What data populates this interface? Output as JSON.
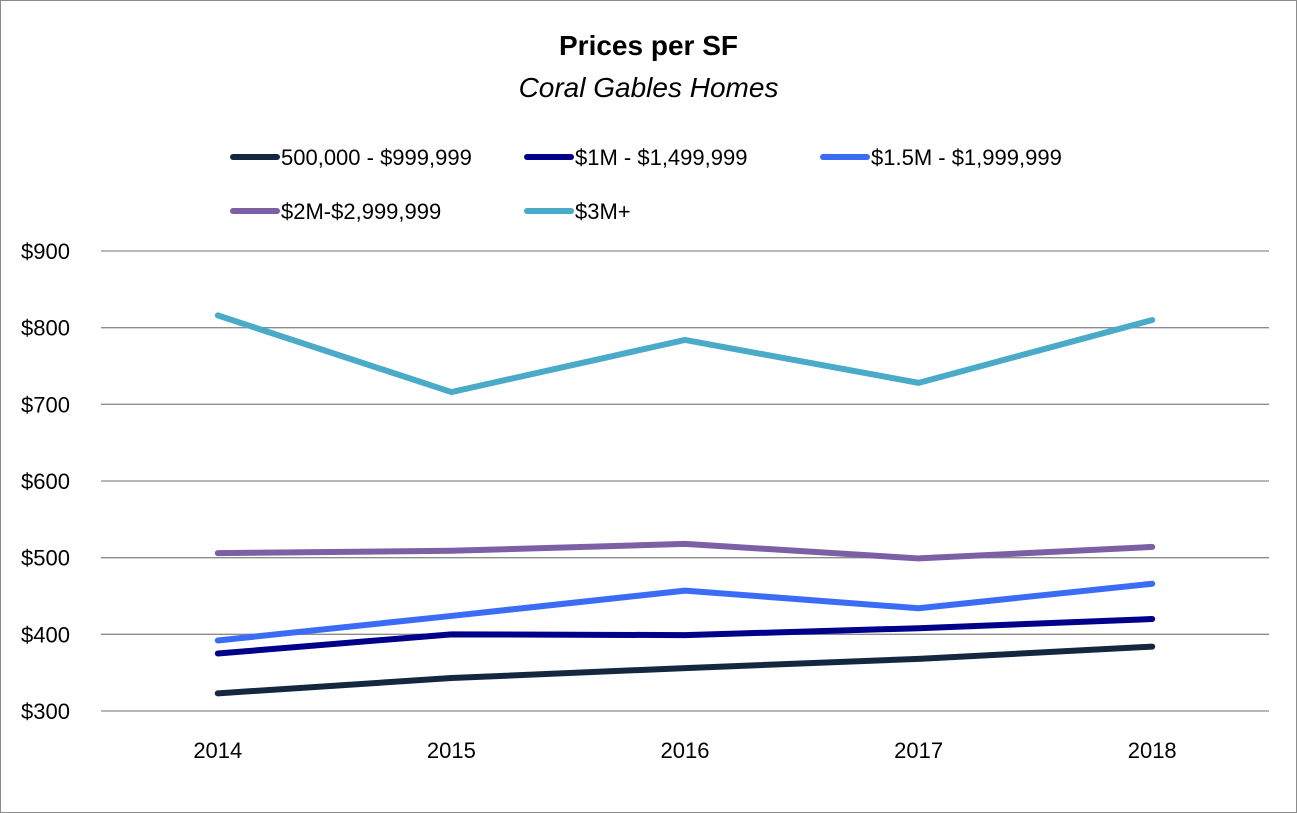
{
  "chart_data": {
    "type": "line",
    "title": "Prices per SF",
    "subtitle": "Coral Gables Homes",
    "xlabel": "",
    "ylabel": "",
    "categories": [
      "2014",
      "2015",
      "2016",
      "2017",
      "2018"
    ],
    "ylim": [
      300,
      900
    ],
    "yticks": [
      300,
      400,
      500,
      600,
      700,
      800,
      900
    ],
    "ytick_labels": [
      "$300",
      "$400",
      "$500",
      "$600",
      "$700",
      "$800",
      "$900"
    ],
    "grid": true,
    "legend_position": "top",
    "series": [
      {
        "name": "500,000 - $999,999",
        "color": "#13283f",
        "values": [
          323,
          343,
          356,
          368,
          384
        ]
      },
      {
        "name": "$1M - $1,499,999",
        "color": "#00008b",
        "values": [
          375,
          400,
          399,
          408,
          420
        ]
      },
      {
        "name": "$1.5M - $1,999,999",
        "color": "#3b6cf5",
        "values": [
          392,
          424,
          457,
          434,
          466
        ]
      },
      {
        "name": "$2M-$2,999,999",
        "color": "#7d5fa6",
        "values": [
          506,
          509,
          518,
          499,
          514
        ]
      },
      {
        "name": "$3M+",
        "color": "#4aabc8",
        "values": [
          816,
          716,
          784,
          728,
          810
        ]
      }
    ]
  }
}
